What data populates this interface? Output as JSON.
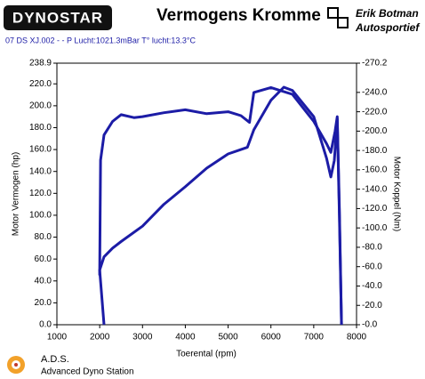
{
  "header": {
    "logo": "DYNOSTAR",
    "brand_line1": "Erik Botman",
    "brand_line2": "Autosportief"
  },
  "chart_data": {
    "type": "line",
    "title": "Vermogens Kromme",
    "subtitle": "07 DS XJ.002 -  - P Lucht:1021.3mBar T° lucht:13.3°C",
    "xlabel": "Toerental (rpm)",
    "ylabel": "Motor Vermogen (hp)",
    "y2label": "Motor Koppel (Nm)",
    "xlim": [
      1000,
      8000
    ],
    "xticks": [
      1000,
      2000,
      3000,
      4000,
      5000,
      6000,
      7000,
      8000
    ],
    "ylim": [
      0,
      238.9
    ],
    "yticks": [
      {
        "value": 0,
        "label": "0.0"
      },
      {
        "value": 20,
        "label": "20.0"
      },
      {
        "value": 40,
        "label": "40.0"
      },
      {
        "value": 60,
        "label": "60.0"
      },
      {
        "value": 80,
        "label": "80.0"
      },
      {
        "value": 100,
        "label": "100.0"
      },
      {
        "value": 120,
        "label": "120.0"
      },
      {
        "value": 140,
        "label": "140.0"
      },
      {
        "value": 160,
        "label": "160.0"
      },
      {
        "value": 180,
        "label": "180.0"
      },
      {
        "value": 200,
        "label": "200.0"
      },
      {
        "value": 220,
        "label": "220.0"
      },
      238.9
    ],
    "y2lim": [
      0,
      -270.2
    ],
    "y2ticks": [
      {
        "value": 0,
        "label": "-0.0"
      },
      {
        "value": -20,
        "label": "-20.0"
      },
      {
        "value": -40,
        "label": "-40.0"
      },
      {
        "value": -60,
        "label": "-60.0"
      },
      {
        "value": -80,
        "label": "-80.0"
      },
      {
        "value": -100,
        "label": "-100.0"
      },
      {
        "value": -120,
        "label": "-120.0"
      },
      {
        "value": -140,
        "label": "-140.0"
      },
      {
        "value": -160,
        "label": "-160.0"
      },
      {
        "value": -180,
        "label": "-180.0"
      },
      {
        "value": -200,
        "label": "-200.0"
      },
      {
        "value": -220,
        "label": "-220.0"
      },
      {
        "value": -240,
        "label": "-240.0"
      },
      -270.2
    ],
    "series": [
      {
        "color": "#1c1ca6",
        "x": [
          2100,
          2000,
          2100,
          2300,
          2500,
          3000,
          3500,
          4000,
          4500,
          5000,
          5300,
          5450,
          5600,
          6000,
          6300,
          6500,
          7000,
          7300,
          7400,
          7480,
          7550,
          7600,
          7650
        ],
        "values": [
          0,
          50,
          62,
          70,
          76,
          90,
          110,
          126,
          143,
          156,
          160,
          162,
          178,
          205,
          217,
          214,
          190,
          152,
          135,
          150,
          188,
          100,
          0
        ]
      },
      {
        "color": "#1c1ca6",
        "axis": "y2",
        "x": [
          2000,
          2020,
          2100,
          2300,
          2500,
          2800,
          3000,
          3500,
          4000,
          4500,
          5000,
          5300,
          5500,
          5600,
          6000,
          6500,
          7000,
          7300,
          7400,
          7500,
          7550,
          7600,
          7650
        ],
        "values": [
          -51,
          -170,
          -196,
          -210,
          -217,
          -214,
          -215,
          -219,
          -222,
          -218,
          -220,
          -216,
          -209,
          -240,
          -245,
          -238,
          -210,
          -187,
          -178,
          -200,
          -215,
          -120,
          0
        ]
      }
    ]
  },
  "footer": {
    "title": "A.D.S.",
    "subtitle": "Advanced Dyno Station"
  }
}
